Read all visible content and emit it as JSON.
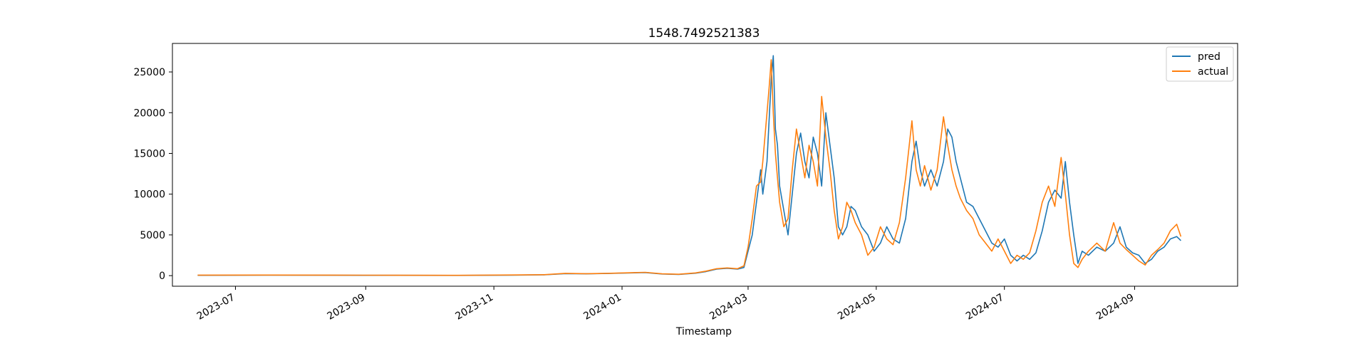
{
  "chart_data": {
    "type": "line",
    "title": "1548.7492521383",
    "xlabel": "Timestamp",
    "ylabel": "",
    "x_range": [
      "2023-06-01",
      "2024-10-20"
    ],
    "ylim": [
      -1300,
      28500
    ],
    "x_ticks": [
      "2023-07",
      "2023-09",
      "2023-11",
      "2024-01",
      "2024-03",
      "2024-05",
      "2024-07",
      "2024-09"
    ],
    "y_ticks": [
      0,
      5000,
      10000,
      15000,
      20000,
      25000
    ],
    "grid": false,
    "legend_position": "top-right",
    "series": [
      {
        "name": "pred",
        "color": "#1f77b4",
        "points": [
          [
            "2023-06-13",
            40
          ],
          [
            "2023-07-15",
            55
          ],
          [
            "2023-08-15",
            50
          ],
          [
            "2023-09-15",
            40
          ],
          [
            "2023-10-15",
            30
          ],
          [
            "2023-11-10",
            60
          ],
          [
            "2023-11-25",
            100
          ],
          [
            "2023-12-05",
            250
          ],
          [
            "2023-12-15",
            220
          ],
          [
            "2023-12-25",
            260
          ],
          [
            "2024-01-05",
            330
          ],
          [
            "2024-01-12",
            380
          ],
          [
            "2024-01-20",
            200
          ],
          [
            "2024-01-28",
            150
          ],
          [
            "2024-02-05",
            300
          ],
          [
            "2024-02-10",
            500
          ],
          [
            "2024-02-15",
            800
          ],
          [
            "2024-02-20",
            900
          ],
          [
            "2024-02-25",
            800
          ],
          [
            "2024-02-28",
            1000
          ],
          [
            "2024-03-01",
            3000
          ],
          [
            "2024-03-03",
            5000
          ],
          [
            "2024-03-05",
            9000
          ],
          [
            "2024-03-07",
            13000
          ],
          [
            "2024-03-08",
            10000
          ],
          [
            "2024-03-10",
            14000
          ],
          [
            "2024-03-11",
            19000
          ],
          [
            "2024-03-12",
            24000
          ],
          [
            "2024-03-13",
            27000
          ],
          [
            "2024-03-14",
            18000
          ],
          [
            "2024-03-15",
            16000
          ],
          [
            "2024-03-16",
            11000
          ],
          [
            "2024-03-18",
            8000
          ],
          [
            "2024-03-20",
            5000
          ],
          [
            "2024-03-22",
            10000
          ],
          [
            "2024-03-24",
            15000
          ],
          [
            "2024-03-26",
            17500
          ],
          [
            "2024-03-28",
            14000
          ],
          [
            "2024-03-30",
            12000
          ],
          [
            "2024-04-01",
            17000
          ],
          [
            "2024-04-03",
            15000
          ],
          [
            "2024-04-05",
            11000
          ],
          [
            "2024-04-07",
            20000
          ],
          [
            "2024-04-09",
            16000
          ],
          [
            "2024-04-11",
            12000
          ],
          [
            "2024-04-13",
            6000
          ],
          [
            "2024-04-15",
            5000
          ],
          [
            "2024-04-17",
            6000
          ],
          [
            "2024-04-19",
            8500
          ],
          [
            "2024-04-21",
            8000
          ],
          [
            "2024-04-24",
            6000
          ],
          [
            "2024-04-27",
            5000
          ],
          [
            "2024-04-30",
            3000
          ],
          [
            "2024-05-03",
            4000
          ],
          [
            "2024-05-06",
            6000
          ],
          [
            "2024-05-09",
            4500
          ],
          [
            "2024-05-12",
            4000
          ],
          [
            "2024-05-15",
            7000
          ],
          [
            "2024-05-18",
            14000
          ],
          [
            "2024-05-20",
            16500
          ],
          [
            "2024-05-22",
            13000
          ],
          [
            "2024-05-24",
            11000
          ],
          [
            "2024-05-27",
            13000
          ],
          [
            "2024-05-30",
            11000
          ],
          [
            "2024-06-02",
            14000
          ],
          [
            "2024-06-04",
            18000
          ],
          [
            "2024-06-06",
            17000
          ],
          [
            "2024-06-08",
            14000
          ],
          [
            "2024-06-10",
            12000
          ],
          [
            "2024-06-13",
            9000
          ],
          [
            "2024-06-16",
            8500
          ],
          [
            "2024-06-19",
            7000
          ],
          [
            "2024-06-22",
            5500
          ],
          [
            "2024-06-25",
            4000
          ],
          [
            "2024-06-28",
            3500
          ],
          [
            "2024-07-01",
            4500
          ],
          [
            "2024-07-04",
            2500
          ],
          [
            "2024-07-07",
            1800
          ],
          [
            "2024-07-10",
            2500
          ],
          [
            "2024-07-13",
            2000
          ],
          [
            "2024-07-16",
            2800
          ],
          [
            "2024-07-19",
            5500
          ],
          [
            "2024-07-22",
            9000
          ],
          [
            "2024-07-25",
            10500
          ],
          [
            "2024-07-28",
            9500
          ],
          [
            "2024-07-30",
            14000
          ],
          [
            "2024-08-01",
            9000
          ],
          [
            "2024-08-03",
            5000
          ],
          [
            "2024-08-05",
            1500
          ],
          [
            "2024-08-07",
            3000
          ],
          [
            "2024-08-10",
            2500
          ],
          [
            "2024-08-14",
            3500
          ],
          [
            "2024-08-18",
            3000
          ],
          [
            "2024-08-22",
            4000
          ],
          [
            "2024-08-25",
            6000
          ],
          [
            "2024-08-28",
            3500
          ],
          [
            "2024-08-31",
            2800
          ],
          [
            "2024-09-03",
            2500
          ],
          [
            "2024-09-06",
            1500
          ],
          [
            "2024-09-09",
            2000
          ],
          [
            "2024-09-12",
            3000
          ],
          [
            "2024-09-15",
            3500
          ],
          [
            "2024-09-18",
            4500
          ],
          [
            "2024-09-21",
            4800
          ],
          [
            "2024-09-23",
            4300
          ]
        ]
      },
      {
        "name": "actual",
        "color": "#ff7f0e",
        "points": [
          [
            "2023-06-13",
            60
          ],
          [
            "2023-07-15",
            70
          ],
          [
            "2023-08-15",
            60
          ],
          [
            "2023-09-15",
            50
          ],
          [
            "2023-10-15",
            40
          ],
          [
            "2023-11-10",
            80
          ],
          [
            "2023-11-25",
            120
          ],
          [
            "2023-12-05",
            280
          ],
          [
            "2023-12-15",
            240
          ],
          [
            "2023-12-25",
            280
          ],
          [
            "2024-01-05",
            350
          ],
          [
            "2024-01-12",
            400
          ],
          [
            "2024-01-20",
            220
          ],
          [
            "2024-01-28",
            170
          ],
          [
            "2024-02-05",
            330
          ],
          [
            "2024-02-10",
            550
          ],
          [
            "2024-02-15",
            850
          ],
          [
            "2024-02-20",
            950
          ],
          [
            "2024-02-25",
            850
          ],
          [
            "2024-02-28",
            1200
          ],
          [
            "2024-03-01",
            3500
          ],
          [
            "2024-03-03",
            7000
          ],
          [
            "2024-03-05",
            11000
          ],
          [
            "2024-03-07",
            11500
          ],
          [
            "2024-03-08",
            14000
          ],
          [
            "2024-03-10",
            20000
          ],
          [
            "2024-03-11",
            23000
          ],
          [
            "2024-03-12",
            26500
          ],
          [
            "2024-03-13",
            20000
          ],
          [
            "2024-03-14",
            15000
          ],
          [
            "2024-03-15",
            12000
          ],
          [
            "2024-03-16",
            9000
          ],
          [
            "2024-03-18",
            6000
          ],
          [
            "2024-03-20",
            7000
          ],
          [
            "2024-03-22",
            13000
          ],
          [
            "2024-03-24",
            18000
          ],
          [
            "2024-03-26",
            15000
          ],
          [
            "2024-03-28",
            12000
          ],
          [
            "2024-03-30",
            16000
          ],
          [
            "2024-04-01",
            14000
          ],
          [
            "2024-04-03",
            11000
          ],
          [
            "2024-04-05",
            22000
          ],
          [
            "2024-04-07",
            17000
          ],
          [
            "2024-04-09",
            13000
          ],
          [
            "2024-04-11",
            8000
          ],
          [
            "2024-04-13",
            4500
          ],
          [
            "2024-04-15",
            6000
          ],
          [
            "2024-04-17",
            9000
          ],
          [
            "2024-04-19",
            8000
          ],
          [
            "2024-04-21",
            6500
          ],
          [
            "2024-04-24",
            5000
          ],
          [
            "2024-04-27",
            2500
          ],
          [
            "2024-04-30",
            3500
          ],
          [
            "2024-05-03",
            6000
          ],
          [
            "2024-05-06",
            4500
          ],
          [
            "2024-05-09",
            3800
          ],
          [
            "2024-05-12",
            6500
          ],
          [
            "2024-05-15",
            12000
          ],
          [
            "2024-05-18",
            19000
          ],
          [
            "2024-05-20",
            13000
          ],
          [
            "2024-05-22",
            11000
          ],
          [
            "2024-05-24",
            13500
          ],
          [
            "2024-05-27",
            10500
          ],
          [
            "2024-05-30",
            13000
          ],
          [
            "2024-06-02",
            19500
          ],
          [
            "2024-06-04",
            16000
          ],
          [
            "2024-06-06",
            13000
          ],
          [
            "2024-06-08",
            11000
          ],
          [
            "2024-06-10",
            9500
          ],
          [
            "2024-06-13",
            8000
          ],
          [
            "2024-06-16",
            7000
          ],
          [
            "2024-06-19",
            5000
          ],
          [
            "2024-06-22",
            4000
          ],
          [
            "2024-06-25",
            3000
          ],
          [
            "2024-06-28",
            4500
          ],
          [
            "2024-07-01",
            3000
          ],
          [
            "2024-07-04",
            1500
          ],
          [
            "2024-07-07",
            2500
          ],
          [
            "2024-07-10",
            2000
          ],
          [
            "2024-07-13",
            2800
          ],
          [
            "2024-07-16",
            5500
          ],
          [
            "2024-07-19",
            9000
          ],
          [
            "2024-07-22",
            11000
          ],
          [
            "2024-07-25",
            8500
          ],
          [
            "2024-07-28",
            14500
          ],
          [
            "2024-07-30",
            10000
          ],
          [
            "2024-08-01",
            5000
          ],
          [
            "2024-08-03",
            1500
          ],
          [
            "2024-08-05",
            1000
          ],
          [
            "2024-08-07",
            2000
          ],
          [
            "2024-08-10",
            3000
          ],
          [
            "2024-08-14",
            4000
          ],
          [
            "2024-08-18",
            3000
          ],
          [
            "2024-08-22",
            6500
          ],
          [
            "2024-08-25",
            4000
          ],
          [
            "2024-08-28",
            3200
          ],
          [
            "2024-08-31",
            2500
          ],
          [
            "2024-09-03",
            1800
          ],
          [
            "2024-09-06",
            1300
          ],
          [
            "2024-09-09",
            2500
          ],
          [
            "2024-09-12",
            3200
          ],
          [
            "2024-09-15",
            4000
          ],
          [
            "2024-09-18",
            5500
          ],
          [
            "2024-09-21",
            6300
          ],
          [
            "2024-09-23",
            4800
          ]
        ]
      }
    ]
  }
}
